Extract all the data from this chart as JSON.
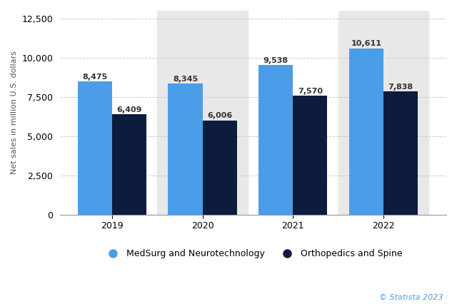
{
  "years": [
    "2019",
    "2020",
    "2021",
    "2022"
  ],
  "medsurg_values": [
    8475,
    8345,
    9538,
    10611
  ],
  "ortho_values": [
    6409,
    6006,
    7570,
    7838
  ],
  "medsurg_color": "#4b9de8",
  "ortho_color": "#0d1b3e",
  "ylabel": "Net sales in million U.S. dollars",
  "ylim": [
    0,
    13000
  ],
  "yticks": [
    0,
    2500,
    5000,
    7500,
    10000,
    12500
  ],
  "legend_medsurg": "MedSurg and Neurotechnology",
  "legend_ortho": "Orthopedics and Spine",
  "watermark": "© Statista 2023",
  "bar_width": 0.38,
  "bg_color": "#ffffff",
  "plot_bg_color": "#ffffff",
  "stripe_color": "#e8e8e8",
  "label_fontsize": 8,
  "axis_fontsize": 9,
  "legend_fontsize": 9,
  "ylabel_fontsize": 8
}
